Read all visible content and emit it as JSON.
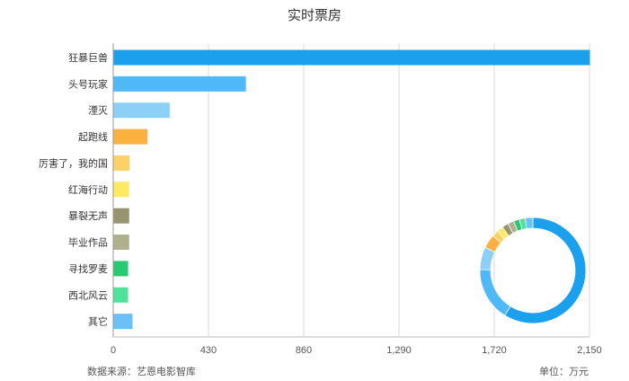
{
  "chart_data": {
    "type": "bar",
    "orientation": "horizontal",
    "title": "实时票房",
    "categories": [
      "狂暴巨兽",
      "头号玩家",
      "湮灭",
      "起跑线",
      "厉害了，我的国",
      "红海行动",
      "暴裂无声",
      "毕业作品",
      "寻找罗麦",
      "西北风云",
      "其它"
    ],
    "values": [
      2150,
      597,
      253,
      153,
      72,
      70,
      70,
      70,
      65,
      65,
      85
    ],
    "colors": [
      "#1ba0ee",
      "#4fb8f7",
      "#8dd0f7",
      "#fbb040",
      "#fdd165",
      "#feea60",
      "#999470",
      "#b0b08e",
      "#27c971",
      "#4fe39a",
      "#6bc0f7"
    ],
    "xlim": [
      0,
      2150
    ],
    "xticks": [
      "0",
      "430",
      "860",
      "1,290",
      "1,720",
      "2,150"
    ],
    "grid": true,
    "inset": {
      "type": "donut",
      "values": [
        2150,
        597,
        253,
        153,
        72,
        70,
        70,
        70,
        65,
        65,
        85
      ],
      "colors": [
        "#1ba0ee",
        "#4fb8f7",
        "#8dd0f7",
        "#fbb040",
        "#fdd165",
        "#feea60",
        "#999470",
        "#b0b08e",
        "#27c971",
        "#4fe39a",
        "#6bc0f7"
      ]
    }
  },
  "footer": {
    "source": "数据来源：艺恩电影智库",
    "unit": "单位：万元"
  }
}
